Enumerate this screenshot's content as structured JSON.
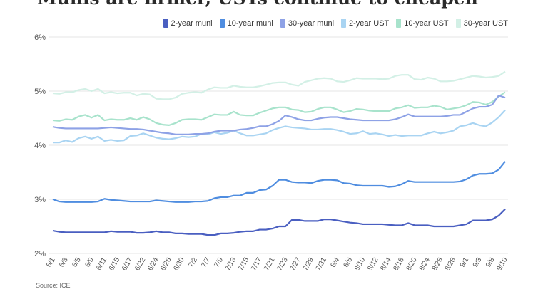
{
  "title": "Munis are firmer, USTs continue to cheapen",
  "source": "Source: ICE",
  "chart_data": {
    "type": "line",
    "ylim": [
      2,
      6
    ],
    "yticks": [
      "2%",
      "3%",
      "4%",
      "5%",
      "6%"
    ],
    "ytick_values": [
      2,
      3,
      4,
      5,
      6
    ],
    "grid": "horizontal",
    "legend_position": "top-right",
    "x": [
      "6/1",
      "6/2",
      "6/3",
      "6/4",
      "6/5",
      "6/8",
      "6/9",
      "6/10",
      "6/11",
      "6/12",
      "6/15",
      "6/16",
      "6/17",
      "6/18",
      "6/22",
      "6/23",
      "6/24",
      "6/25",
      "6/26",
      "6/29",
      "6/30",
      "7/1",
      "7/2",
      "7/6",
      "7/7",
      "7/8",
      "7/9",
      "7/10",
      "7/13",
      "7/14",
      "7/15",
      "7/16",
      "7/17",
      "7/20",
      "7/21",
      "7/22",
      "7/23",
      "7/24",
      "7/27",
      "7/28",
      "7/29",
      "7/30",
      "7/31",
      "8/3",
      "8/4",
      "8/5",
      "8/6",
      "8/7",
      "8/10",
      "8/11",
      "8/12",
      "8/13",
      "8/14",
      "8/17",
      "8/18",
      "8/19",
      "8/20",
      "8/21",
      "8/24",
      "8/25",
      "8/26",
      "8/27",
      "8/28",
      "8/31",
      "9/1",
      "9/2",
      "9/3",
      "9/4",
      "9/8",
      "9/9",
      "9/10"
    ],
    "xtick_labels": [
      "6/1",
      "6/3",
      "6/5",
      "6/9",
      "6/11",
      "6/15",
      "6/17",
      "6/22",
      "6/24",
      "6/26",
      "6/30",
      "7/2",
      "7/7",
      "7/9",
      "7/13",
      "7/15",
      "7/17",
      "7/21",
      "7/23",
      "7/27",
      "7/29",
      "7/31",
      "8/4",
      "8/6",
      "8/10",
      "8/12",
      "8/14",
      "8/18",
      "8/20",
      "8/24",
      "8/26",
      "8/28",
      "9/1",
      "9/3",
      "9/8",
      "9/10"
    ],
    "series": [
      {
        "name": "2-year muni",
        "color": "#4a5fc1",
        "values": [
          2.42,
          2.4,
          2.39,
          2.39,
          2.39,
          2.39,
          2.39,
          2.39,
          2.39,
          2.41,
          2.4,
          2.4,
          2.4,
          2.38,
          2.38,
          2.39,
          2.41,
          2.39,
          2.39,
          2.37,
          2.37,
          2.36,
          2.36,
          2.36,
          2.34,
          2.34,
          2.37,
          2.37,
          2.38,
          2.4,
          2.41,
          2.41,
          2.44,
          2.44,
          2.46,
          2.5,
          2.5,
          2.62,
          2.62,
          2.6,
          2.6,
          2.6,
          2.63,
          2.63,
          2.61,
          2.59,
          2.57,
          2.56,
          2.54,
          2.54,
          2.54,
          2.54,
          2.53,
          2.52,
          2.52,
          2.56,
          2.52,
          2.52,
          2.52,
          2.5,
          2.5,
          2.5,
          2.5,
          2.52,
          2.54,
          2.61,
          2.61,
          2.61,
          2.63,
          2.7,
          2.82
        ]
      },
      {
        "name": "10-year muni",
        "color": "#4f8de0",
        "values": [
          3.0,
          2.96,
          2.95,
          2.95,
          2.95,
          2.95,
          2.95,
          2.96,
          3.01,
          2.99,
          2.98,
          2.97,
          2.96,
          2.96,
          2.96,
          2.96,
          2.98,
          2.97,
          2.96,
          2.95,
          2.95,
          2.95,
          2.96,
          2.96,
          2.97,
          3.02,
          3.04,
          3.04,
          3.07,
          3.07,
          3.12,
          3.12,
          3.17,
          3.18,
          3.25,
          3.36,
          3.36,
          3.32,
          3.31,
          3.31,
          3.3,
          3.34,
          3.36,
          3.36,
          3.35,
          3.3,
          3.29,
          3.26,
          3.25,
          3.25,
          3.25,
          3.25,
          3.23,
          3.24,
          3.28,
          3.34,
          3.32,
          3.32,
          3.32,
          3.32,
          3.32,
          3.32,
          3.32,
          3.33,
          3.37,
          3.44,
          3.47,
          3.47,
          3.48,
          3.55,
          3.7
        ]
      },
      {
        "name": "30-year muni",
        "color": "#8ea2e6",
        "values": [
          4.34,
          4.32,
          4.31,
          4.31,
          4.31,
          4.31,
          4.31,
          4.31,
          4.32,
          4.33,
          4.32,
          4.31,
          4.3,
          4.3,
          4.29,
          4.27,
          4.25,
          4.23,
          4.22,
          4.2,
          4.2,
          4.2,
          4.21,
          4.21,
          4.22,
          4.25,
          4.27,
          4.27,
          4.27,
          4.29,
          4.3,
          4.32,
          4.35,
          4.35,
          4.39,
          4.45,
          4.55,
          4.52,
          4.48,
          4.46,
          4.46,
          4.49,
          4.51,
          4.52,
          4.52,
          4.5,
          4.48,
          4.47,
          4.46,
          4.46,
          4.46,
          4.46,
          4.46,
          4.48,
          4.52,
          4.57,
          4.53,
          4.53,
          4.53,
          4.53,
          4.53,
          4.54,
          4.56,
          4.56,
          4.62,
          4.68,
          4.71,
          4.71,
          4.75,
          4.92,
          4.88
        ]
      },
      {
        "name": "2-year UST",
        "color": "#a9d4f2",
        "values": [
          4.05,
          4.05,
          4.09,
          4.06,
          4.13,
          4.16,
          4.12,
          4.16,
          4.08,
          4.1,
          4.08,
          4.09,
          4.17,
          4.18,
          4.22,
          4.18,
          4.14,
          4.12,
          4.11,
          4.13,
          4.16,
          4.15,
          4.16,
          4.21,
          4.2,
          4.24,
          4.21,
          4.23,
          4.27,
          4.22,
          4.18,
          4.18,
          4.2,
          4.22,
          4.28,
          4.32,
          4.35,
          4.33,
          4.32,
          4.31,
          4.29,
          4.29,
          4.3,
          4.3,
          4.28,
          4.25,
          4.21,
          4.22,
          4.26,
          4.21,
          4.22,
          4.2,
          4.17,
          4.19,
          4.17,
          4.18,
          4.18,
          4.18,
          4.22,
          4.25,
          4.22,
          4.24,
          4.27,
          4.35,
          4.37,
          4.41,
          4.37,
          4.35,
          4.42,
          4.52,
          4.65
        ]
      },
      {
        "name": "10-year UST",
        "color": "#a8e3cc",
        "values": [
          4.46,
          4.45,
          4.48,
          4.47,
          4.53,
          4.56,
          4.51,
          4.56,
          4.46,
          4.48,
          4.47,
          4.47,
          4.5,
          4.47,
          4.52,
          4.48,
          4.41,
          4.38,
          4.37,
          4.41,
          4.47,
          4.48,
          4.48,
          4.47,
          4.52,
          4.57,
          4.56,
          4.56,
          4.62,
          4.56,
          4.55,
          4.55,
          4.6,
          4.64,
          4.68,
          4.7,
          4.7,
          4.66,
          4.65,
          4.61,
          4.62,
          4.67,
          4.7,
          4.7,
          4.66,
          4.61,
          4.63,
          4.67,
          4.66,
          4.64,
          4.63,
          4.63,
          4.63,
          4.68,
          4.7,
          4.74,
          4.69,
          4.7,
          4.7,
          4.73,
          4.71,
          4.66,
          4.68,
          4.7,
          4.74,
          4.8,
          4.79,
          4.75,
          4.8,
          4.9,
          4.98
        ]
      },
      {
        "name": "30-year UST",
        "color": "#d3f0e6",
        "values": [
          4.96,
          4.95,
          4.98,
          4.98,
          5.02,
          5.04,
          5.0,
          5.04,
          4.96,
          4.98,
          4.96,
          4.97,
          4.97,
          4.92,
          4.95,
          4.94,
          4.86,
          4.85,
          4.85,
          4.88,
          4.95,
          4.97,
          4.98,
          4.97,
          5.03,
          5.07,
          5.06,
          5.06,
          5.1,
          5.08,
          5.07,
          5.07,
          5.09,
          5.12,
          5.15,
          5.16,
          5.16,
          5.12,
          5.1,
          5.17,
          5.2,
          5.23,
          5.24,
          5.23,
          5.18,
          5.17,
          5.2,
          5.24,
          5.23,
          5.23,
          5.23,
          5.22,
          5.23,
          5.28,
          5.3,
          5.3,
          5.22,
          5.21,
          5.25,
          5.23,
          5.18,
          5.18,
          5.19,
          5.22,
          5.25,
          5.28,
          5.27,
          5.25,
          5.26,
          5.28,
          5.36
        ]
      }
    ]
  }
}
